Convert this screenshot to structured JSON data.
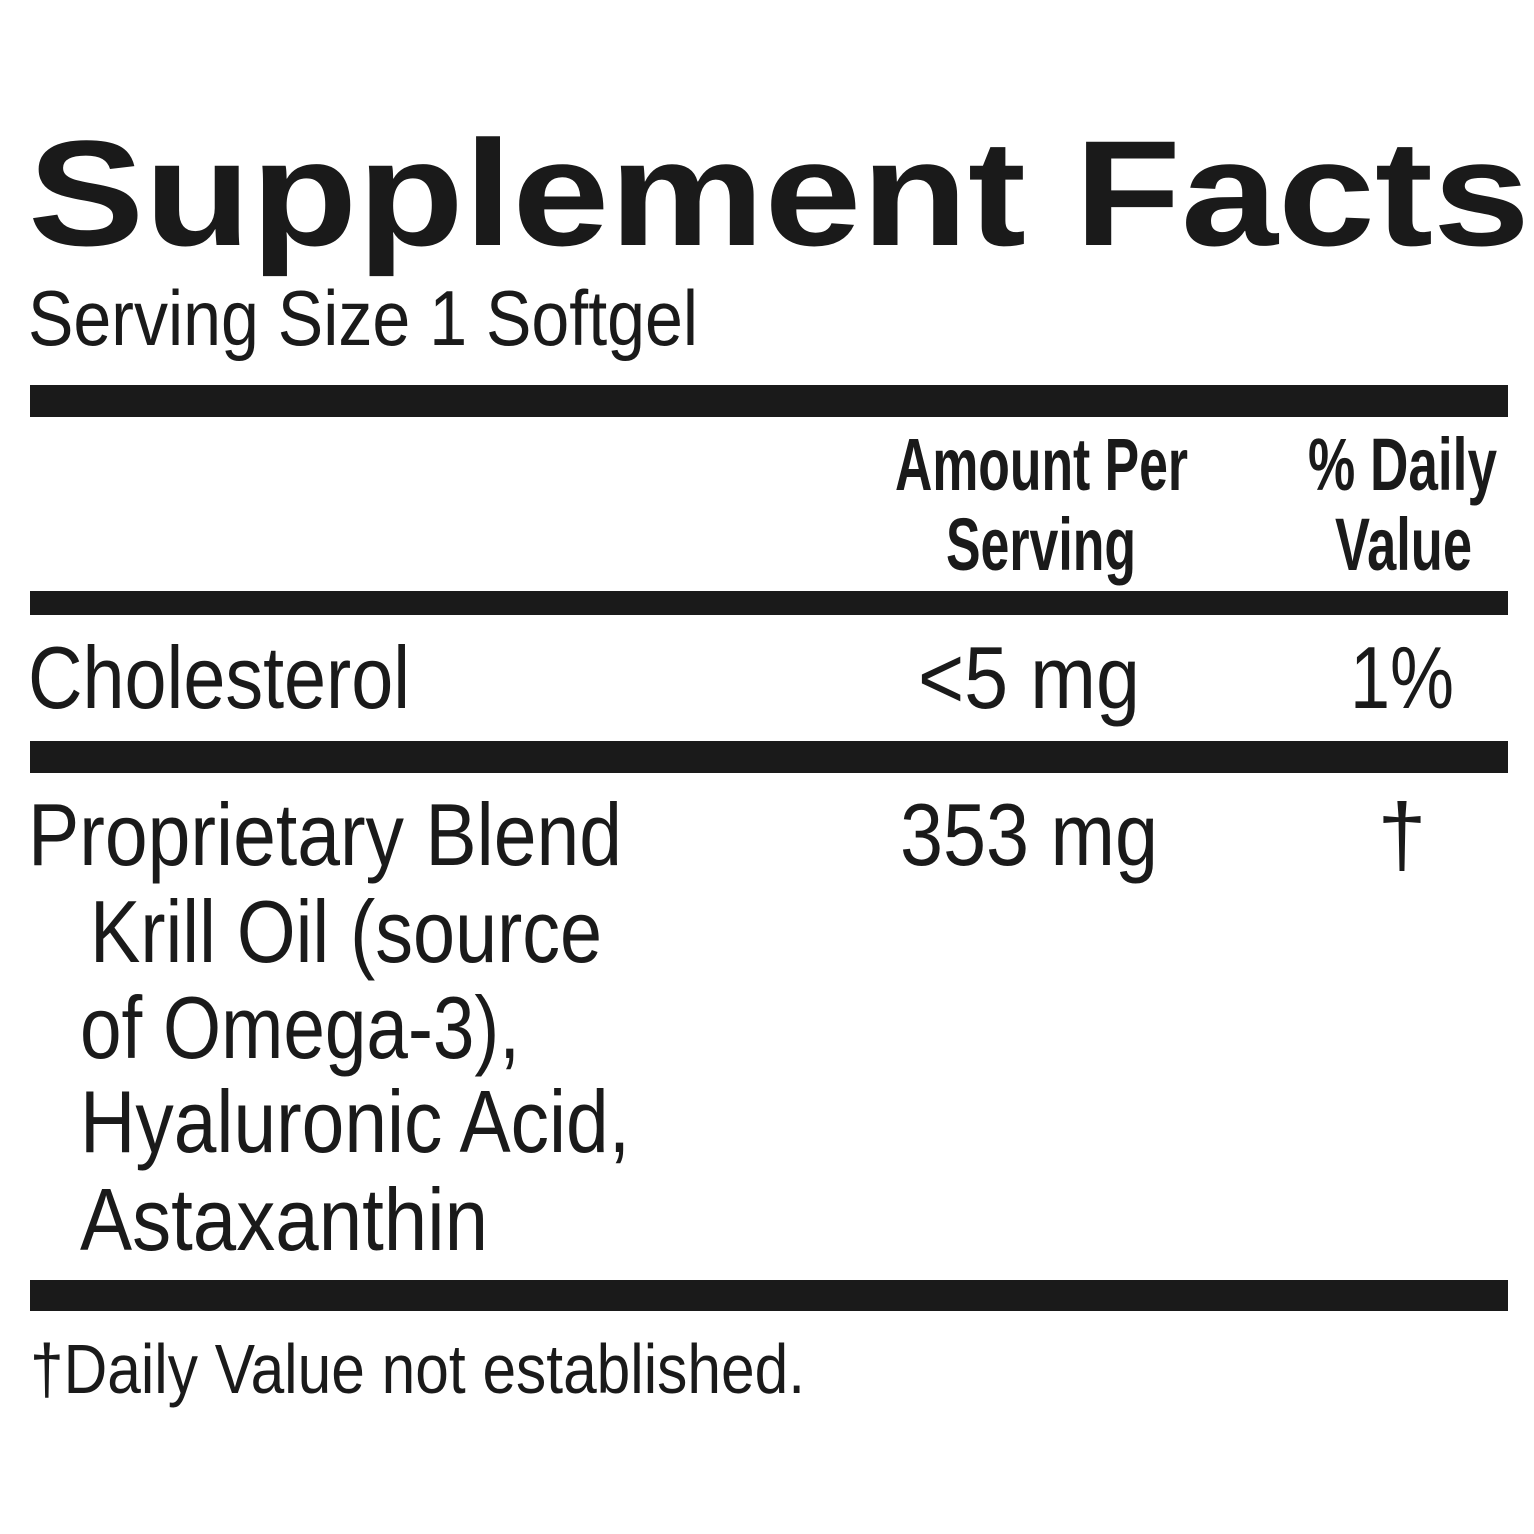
{
  "title": "Supplement Facts",
  "serving_size": "Serving Size 1 Softgel",
  "header": {
    "amount": [
      "Amount Per",
      "Serving"
    ],
    "daily_value": [
      "% Daily",
      "Value"
    ]
  },
  "rows": [
    {
      "name": "Cholesterol",
      "amount": "<5 mg",
      "daily_value": "1%"
    },
    {
      "name": "Proprietary Blend",
      "amount": "353 mg",
      "daily_value": "†",
      "ingredients": [
        "Krill Oil (source",
        "of Omega-3),",
        "Hyaluronic Acid,",
        "Astaxanthin"
      ]
    }
  ],
  "footnote": "†Daily Value not established."
}
